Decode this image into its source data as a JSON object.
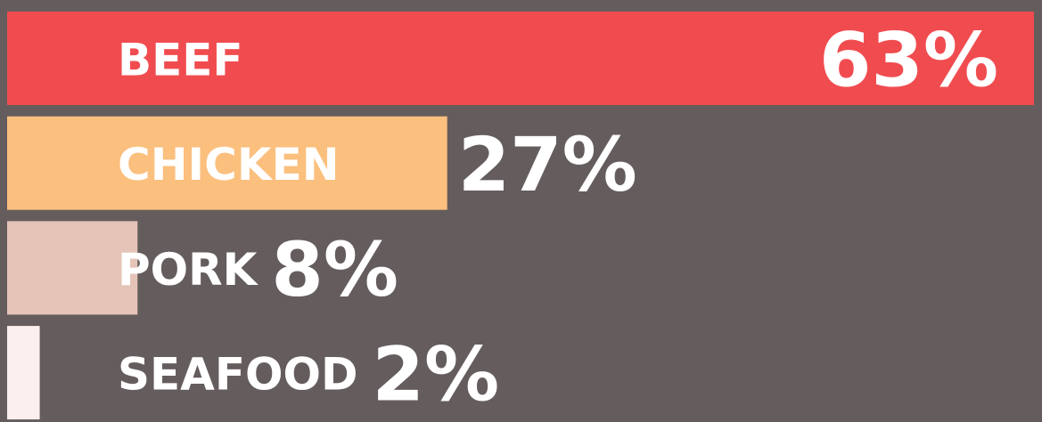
{
  "chart_data": {
    "type": "hbar",
    "categories": [
      "BEEF",
      "CHICKEN",
      "PORK",
      "SEAFOOD"
    ],
    "values": [
      63,
      27,
      8,
      2
    ],
    "value_labels": [
      "63%",
      "27%",
      "8%",
      "2%"
    ],
    "colors": [
      "#f04c50",
      "#fbbf7e",
      "#e5c4b8",
      "#fcf0ee"
    ]
  }
}
